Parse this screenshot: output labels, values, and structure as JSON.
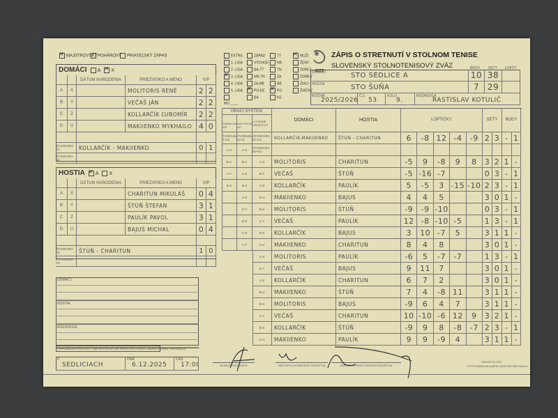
{
  "match_type": [
    {
      "label": "MAJSTROVSKÝ",
      "checked": true
    },
    {
      "label": "POHÁROVÝ",
      "checked": false
    },
    {
      "label": "PRIATEĽSKÝ ZÁPAS",
      "checked": false
    }
  ],
  "home_roster": {
    "title": "DOMÁCI",
    "opt_a": "A",
    "opt_x": "X",
    "selected": "X",
    "col_date": "DÁTUM NARODENIA",
    "col_name": "PRIEZVISKO A MENO",
    "col_vp": "V/P",
    "players": [
      {
        "code1": "A",
        "code2": "X",
        "name": "MOLITORIS RENÉ",
        "v": "2",
        "p": "2"
      },
      {
        "code1": "B",
        "code2": "Y",
        "name": "VEČAŠ JÁN",
        "v": "2",
        "p": "2"
      },
      {
        "code1": "C",
        "code2": "Z",
        "name": "KOLLARČÍK ĽUBOMÍR",
        "v": "2",
        "p": "2"
      },
      {
        "code1": "D",
        "code2": "U",
        "name": "MAKIIENKO MYKHAILO",
        "v": "4",
        "p": "0"
      }
    ],
    "doubles": [
      {
        "label": "ŠTVORHRA D1",
        "name": "KOLLARČÍK - MAKIIENKO",
        "v": "0",
        "p": "1"
      },
      {
        "label": "ŠTVORHRA D2",
        "name": "",
        "v": "",
        "p": ""
      }
    ]
  },
  "away_roster": {
    "title": "HOSTIA",
    "opt_a": "A",
    "opt_x": "X",
    "selected": "A",
    "col_date": "DÁTUM NARODENIA",
    "col_name": "PRIEZVISKO A MENO",
    "col_vp": "V/P",
    "players": [
      {
        "code1": "A",
        "code2": "X",
        "name": "CHARITUN MIKULÁŠ",
        "v": "0",
        "p": "4"
      },
      {
        "code1": "B",
        "code2": "Y",
        "name": "ŠTÚŇ ŠTEFAN",
        "v": "3",
        "p": "1"
      },
      {
        "code1": "C",
        "code2": "Z",
        "name": "PAULÍK PAVOL",
        "v": "3",
        "p": "1"
      },
      {
        "code1": "D",
        "code2": "U",
        "name": "BAJUS MICHAL",
        "v": "0",
        "p": "4"
      }
    ],
    "doubles": [
      {
        "label": "ŠTVORHRA H1",
        "name": "ŠTÚŇ - CHARITUN",
        "v": "1",
        "p": "0"
      },
      {
        "label": "ŠTVORHRA H2",
        "name": "",
        "v": "",
        "p": ""
      }
    ]
  },
  "leagues": [
    [
      {
        "label": "EXTRA",
        "checked": false
      },
      {
        "label": "1. LIGA",
        "checked": false
      },
      {
        "label": "2. LIGA",
        "checked": false
      },
      {
        "label": "3. LIGA",
        "checked": true
      },
      {
        "label": "4. LIGA",
        "checked": false
      },
      {
        "label": "5. LIGA",
        "checked": false
      },
      {
        "label": "",
        "checked": false
      },
      {
        "label": "MO ____",
        "checked": null
      }
    ],
    [
      {
        "label": "ZÁPAD",
        "checked": false
      },
      {
        "label": "VÝCHOD",
        "checked": false
      },
      {
        "label": "BA-TT",
        "checked": false
      },
      {
        "label": "NR-TN",
        "checked": false
      },
      {
        "label": "ZA-BB",
        "checked": false
      },
      {
        "label": "PO-KE",
        "checked": true
      },
      {
        "label": "BA",
        "checked": false
      }
    ],
    [
      {
        "label": "TT",
        "checked": false
      },
      {
        "label": "NR",
        "checked": false
      },
      {
        "label": "TN",
        "checked": false
      },
      {
        "label": "ZA",
        "checked": false
      },
      {
        "label": "BB",
        "checked": false
      },
      {
        "label": "PO",
        "checked": true
      },
      {
        "label": "KE",
        "checked": false
      }
    ],
    [
      {
        "label": "MUŽI",
        "checked": true
      },
      {
        "label": "ŽENY",
        "checked": false
      },
      {
        "label": "DORCI",
        "checked": false
      },
      {
        "label": "DORKY",
        "checked": false
      },
      {
        "label": "ŽIACI",
        "checked": false
      },
      {
        "label": "ŽIAČKY",
        "checked": false
      }
    ]
  ],
  "header": {
    "logo_text": "SSTZ",
    "title": "ZÁPIS O STRETNUTÍ V STOLNOM TENISE",
    "subtitle": "SLOVENSKÝ STOLNOTENISOVÝ ZVÄZ",
    "col_body": "BODY",
    "col_sety": "SETY",
    "col_lopty": "LOPTY",
    "home_label": "DOMÁCI",
    "home_team": "STO SEDLICE A",
    "home_body": "10",
    "home_sety": "38",
    "home_lopty": "",
    "away_label": "HOSTIA",
    "away_team": "STO ŠUŇA",
    "away_body": "7",
    "away_sety": "29",
    "away_lopty": "",
    "season_label": "ROČNÍK",
    "season": "2025/2026",
    "match_no_label": "Č.Z.",
    "match_no": "53",
    "round_label": "KOLO",
    "round": "9.",
    "referee_label": "ROZHODCA",
    "referee": "RASTISLAV KOTULIČ"
  },
  "match_table": {
    "system_label": "HRACÍ SYSTÉM",
    "system_cols": [
      "2 Corbillon Cup",
      "3 Swaythling Cup",
      "4 členné družstvo"
    ],
    "col_home": "DOMÁCI",
    "col_away": "HOSTIA",
    "col_points": "LOPTIČKY",
    "col_sets": "SETY",
    "col_body": "BODY",
    "rows": [
      {
        "s1": "ŠTVORHRA D1-H1",
        "s2": "ŠTVORHRA D1-H1",
        "s3": "ŠTVORHRA D1-H1",
        "home": "KOLLARČÍK-MAKIIENKO",
        "away": "ŠTÚŇ - CHARITUN",
        "scores": [
          "6",
          "-8",
          "12",
          "-4",
          "-9"
        ],
        "sets": [
          "2",
          "3"
        ],
        "body": [
          "-",
          "1"
        ]
      },
      {
        "s1": "A-X",
        "s2": "A-X",
        "s3": "ŠTVORHRA D2-H2",
        "home": "",
        "away": "",
        "scores": [
          "",
          "",
          "",
          "",
          ""
        ],
        "sets": [
          "",
          ""
        ],
        "body": [
          "",
          ""
        ]
      },
      {
        "s1": "B-Y",
        "s2": "B-Y",
        "s3": "A-X",
        "home": "MOLITORIS",
        "away": "CHARITUN",
        "scores": [
          "-5",
          "9",
          "-8",
          "9",
          "8"
        ],
        "sets": [
          "3",
          "2"
        ],
        "body": [
          "1",
          "-"
        ]
      },
      {
        "s1": "A-Y",
        "s2": "C-Z",
        "s3": "B-Y",
        "home": "VEČAŠ",
        "away": "ŠTÚŇ",
        "scores": [
          "-5",
          "-16",
          "-7",
          "",
          ""
        ],
        "sets": [
          "0",
          "3"
        ],
        "body": [
          "-",
          "1"
        ]
      },
      {
        "s1": "B-X",
        "s2": "B-X",
        "s3": "C-Z",
        "home": "KOLLARČÍK",
        "away": "PAULÍK",
        "scores": [
          "5",
          "-5",
          "3",
          "-15",
          "-10"
        ],
        "sets": [
          "2",
          "3"
        ],
        "body": [
          "-",
          "1"
        ]
      },
      {
        "s1": "",
        "s2": "A-Z",
        "s3": "D-U",
        "home": "MAKIIENKO",
        "away": "BAJUS",
        "scores": [
          "4",
          "4",
          "5",
          "",
          ""
        ],
        "sets": [
          "3",
          "0"
        ],
        "body": [
          "1",
          "-"
        ]
      },
      {
        "s1": "",
        "s2": "C-Y",
        "s3": "B-X",
        "home": "MOLITORIS",
        "away": "ŠTÚŇ",
        "scores": [
          "-9",
          "-9",
          "-10",
          "",
          ""
        ],
        "sets": [
          "0",
          "3"
        ],
        "body": [
          "-",
          "1"
        ]
      },
      {
        "s1": "",
        "s2": "B-Z",
        "s3": "C-Y",
        "home": "VEČAŠ",
        "away": "PAULÍK",
        "scores": [
          "12",
          "-8",
          "-10",
          "-5",
          ""
        ],
        "sets": [
          "1",
          "3"
        ],
        "body": [
          "-",
          "1"
        ]
      },
      {
        "s1": "",
        "s2": "C-X",
        "s3": "D-Z",
        "home": "KOLLARČÍK",
        "away": "BAJUS",
        "scores": [
          "3",
          "10",
          "-7",
          "5",
          ""
        ],
        "sets": [
          "3",
          "1"
        ],
        "body": [
          "1",
          "-"
        ]
      },
      {
        "s1": "",
        "s2": "A-Y",
        "s3": "A-U",
        "home": "MAKIIENKO",
        "away": "CHARITUN",
        "scores": [
          "8",
          "4",
          "8",
          "",
          ""
        ],
        "sets": [
          "3",
          "0"
        ],
        "body": [
          "1",
          "-"
        ]
      },
      {
        "s1": "",
        "s2": "",
        "s3": "C-X",
        "home": "MOLITORIS",
        "away": "PAULÍK",
        "scores": [
          "-6",
          "5",
          "-7",
          "-7",
          ""
        ],
        "sets": [
          "1",
          "3"
        ],
        "body": [
          "-",
          "1"
        ]
      },
      {
        "s1": "",
        "s2": "",
        "s3": "D-Y",
        "home": "VEČAŠ",
        "away": "BAJUS",
        "scores": [
          "9",
          "11",
          "7",
          "",
          ""
        ],
        "sets": [
          "3",
          "0"
        ],
        "body": [
          "1",
          "-"
        ]
      },
      {
        "s1": "",
        "s2": "",
        "s3": "A-Z",
        "home": "KOLLARČÍK",
        "away": "CHARITUN",
        "scores": [
          "6",
          "7",
          "2",
          "",
          ""
        ],
        "sets": [
          "3",
          "0"
        ],
        "body": [
          "1",
          "-"
        ]
      },
      {
        "s1": "",
        "s2": "",
        "s3": "B-U",
        "home": "MAKIIENKO",
        "away": "ŠTÚŇ",
        "scores": [
          "7",
          "4",
          "-8",
          "11",
          ""
        ],
        "sets": [
          "3",
          "1"
        ],
        "body": [
          "1",
          "-"
        ]
      },
      {
        "s1": "",
        "s2": "",
        "s3": "D-X",
        "home": "MOLITORIS",
        "away": "BAJUS",
        "scores": [
          "-9",
          "6",
          "4",
          "7",
          ""
        ],
        "sets": [
          "3",
          "1"
        ],
        "body": [
          "1",
          "-"
        ]
      },
      {
        "s1": "",
        "s2": "",
        "s3": "A-Y",
        "home": "VEČAŠ",
        "away": "CHARITUN",
        "scores": [
          "10",
          "-10",
          "-6",
          "12",
          "9"
        ],
        "sets": [
          "3",
          "2"
        ],
        "body": [
          "1",
          "-"
        ]
      },
      {
        "s1": "",
        "s2": "",
        "s3": "B-Z",
        "home": "KOLLARČÍK",
        "away": "ŠTÚŇ",
        "scores": [
          "-9",
          "9",
          "8",
          "-8",
          "-7"
        ],
        "sets": [
          "2",
          "3"
        ],
        "body": [
          "-",
          "1"
        ]
      },
      {
        "s1": "",
        "s2": "",
        "s3": "C-U",
        "home": "MAKIIENKO",
        "away": "PAULÍK",
        "scores": [
          "9",
          "9",
          "-9",
          "4",
          ""
        ],
        "sets": [
          "3",
          "1"
        ],
        "body": [
          "1",
          "-"
        ]
      }
    ]
  },
  "comments": {
    "home_label": "DOMÁCI",
    "away_label": "HOSTIA",
    "referee_label": "ROZHODCA",
    "protests_label": "PRIPOMIENKY/PROTESTY (AK NEPOSTAČUJE PRIESTOR, POUŽIŤ ZADNÚ STRANU ORIGINÁLU)"
  },
  "footer": {
    "place_label": "V",
    "place": "SEDLICIACH",
    "date_label": "DŇA",
    "date": "6.12.2025",
    "time_label": "ČAS",
    "time": "17:00",
    "sig_referee": "HLAVNÝ ROZHODCA",
    "sig_home": "ZÁSTUPCA DOMÁCEHO DRUŽSTVA",
    "sig_away": "ZÁSTUPCA HOSTUJÚCEHO DRUŽSTVA",
    "form_id": "ZAPISST11.RTF",
    "form_url": "HTTP://WWW.MILANEK.CZ/SPORT/MICHALKA"
  },
  "colors": {
    "paper": "#e4dfb8",
    "background": "#3b3d3f",
    "ink": "#4a4a48"
  }
}
